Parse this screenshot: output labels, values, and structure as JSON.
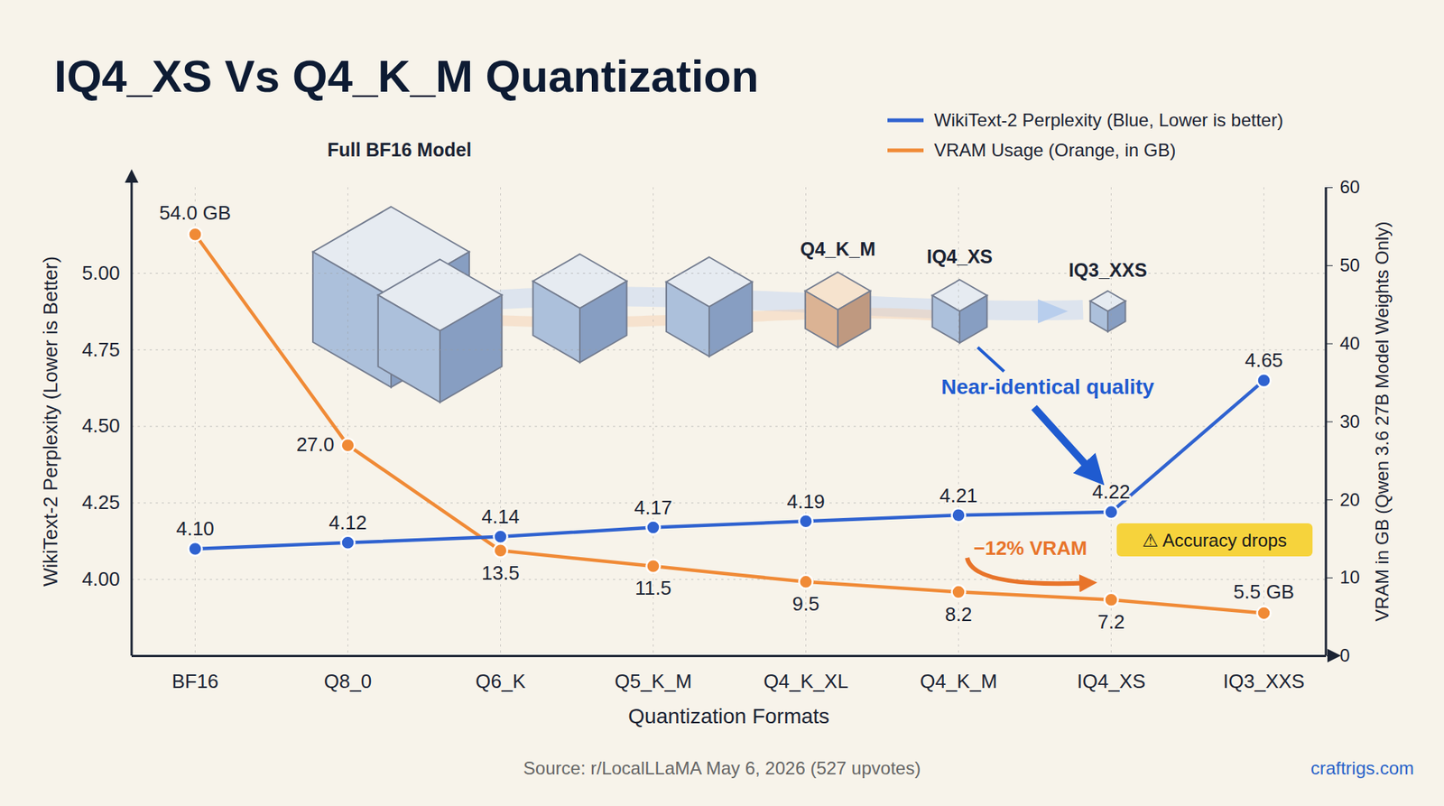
{
  "chart_data": {
    "type": "line",
    "title": "IQ4_XS Vs Q4_K_M Quantization",
    "x_label": "Quantization Formats",
    "y_label": "WikiText-2 Perplexity (Lower is Better)",
    "y2_label": "VRAM in GB (Qwen 3.6 27B Model Weights Only)",
    "categories": [
      "BF16",
      "Q8_0",
      "Q6_K",
      "Q5_K_M",
      "Q4_K_XL",
      "Q4_K_M",
      "IQ4_XS",
      "IQ3_XXS"
    ],
    "series": [
      {
        "name": "WikiText-2 Perplexity (Blue, Lower is better)",
        "color": "#2f62d0",
        "marker": "circle",
        "values": [
          4.1,
          4.12,
          4.14,
          4.17,
          4.19,
          4.21,
          4.22,
          4.65
        ],
        "value_labels": [
          "4.10",
          "4.12",
          "4.14",
          "4.17",
          "4.19",
          "4.21",
          "4.22",
          "4.65"
        ]
      },
      {
        "name": "VRAM Usage (Orange, in GB)",
        "color": "#f08a36",
        "marker": "circle",
        "axis": "y2",
        "values": [
          54.0,
          27.0,
          13.5,
          11.5,
          9.5,
          8.2,
          7.2,
          5.5
        ],
        "value_labels": [
          "54.0 GB",
          "27.0",
          "13.5",
          "11.5",
          "9.5",
          "8.2",
          "7.2",
          "5.5 GB"
        ]
      }
    ],
    "ylim": [
      3.75,
      5.28
    ],
    "yticks": [
      {
        "value": 4,
        "label": "4.00"
      },
      {
        "value": 4.25,
        "label": "4.25"
      },
      {
        "value": 4.5,
        "label": "4.50"
      },
      {
        "value": 4.75,
        "label": "4.75"
      },
      {
        "value": 5,
        "label": "5.00"
      }
    ],
    "y2lim": [
      0,
      60
    ],
    "y2ticks": [
      0,
      10,
      20,
      30,
      40,
      50,
      60
    ],
    "grid": true,
    "legend": "top right",
    "data_labels": true,
    "annotations": [
      {
        "text": "Full BF16 Model"
      },
      {
        "text": "Q4_K_M"
      },
      {
        "text": "IQ4_XS"
      },
      {
        "text": "IQ3_XXS"
      },
      {
        "text": "Near-identical quality"
      },
      {
        "text": "−12% VRAM"
      },
      {
        "text": "⚠ Accuracy drops"
      }
    ],
    "source": "Source: r/LocalLLaMA May 6, 2026 (527 upvotes)",
    "credit": "craftrigs.com"
  }
}
